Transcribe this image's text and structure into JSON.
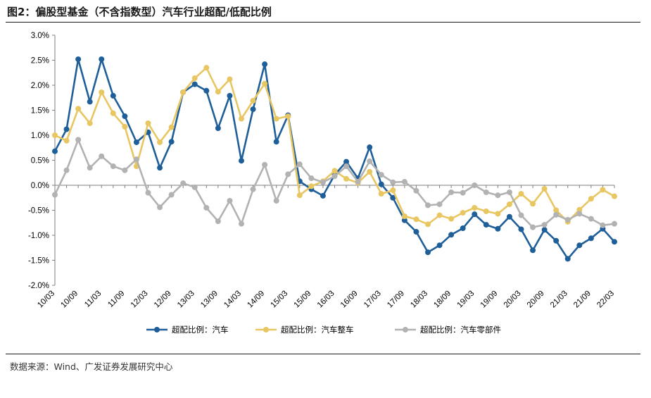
{
  "figure": {
    "title": "图2：偏股型基金（不含指数型）汽车行业超配/低配比例",
    "source": "数据来源：Wind、广发证券发展研究中心"
  },
  "chart_data": {
    "type": "line",
    "y_ticks": [
      "3.0%",
      "2.5%",
      "2.0%",
      "1.5%",
      "1.0%",
      "0.5%",
      "0.0%",
      "-0.5%",
      "-1.0%",
      "-1.5%",
      "-2.0%"
    ],
    "ylim": [
      -2.0,
      3.0
    ],
    "grid": false,
    "legend_position": "bottom",
    "x": [
      "10/03",
      "10/06",
      "10/09",
      "10/12",
      "11/03",
      "11/06",
      "11/09",
      "11/12",
      "12/03",
      "12/06",
      "12/09",
      "12/12",
      "13/03",
      "13/06",
      "13/09",
      "13/12",
      "14/03",
      "14/06",
      "14/09",
      "14/12",
      "15/03",
      "15/06",
      "15/09",
      "15/12",
      "16/03",
      "16/06",
      "16/09",
      "16/12",
      "17/03",
      "17/06",
      "17/09",
      "17/12",
      "18/03",
      "18/06",
      "18/09",
      "18/12",
      "19/03",
      "19/06",
      "19/09",
      "19/12",
      "20/03",
      "20/06",
      "20/09",
      "20/12",
      "21/03",
      "21/06",
      "21/09",
      "21/12",
      "22/03"
    ],
    "x_tick_labels": [
      "10/03",
      "10/09",
      "11/03",
      "11/09",
      "12/03",
      "12/09",
      "13/03",
      "13/09",
      "14/03",
      "14/09",
      "15/03",
      "15/09",
      "16/03",
      "16/09",
      "17/03",
      "17/09",
      "18/03",
      "18/09",
      "19/03",
      "19/09",
      "20/03",
      "20/09",
      "21/03",
      "21/09",
      "22/03"
    ],
    "series": [
      {
        "name": "超配比例：汽车",
        "color": "#1F5F99",
        "values": [
          0.68,
          1.12,
          2.52,
          1.67,
          2.52,
          1.79,
          1.38,
          0.86,
          1.06,
          0.35,
          0.87,
          1.86,
          2.02,
          1.89,
          1.14,
          1.79,
          0.49,
          1.52,
          2.42,
          0.87,
          1.4,
          0.08,
          -0.08,
          -0.21,
          0.21,
          0.47,
          0.14,
          0.76,
          0.02,
          -0.25,
          -0.7,
          -0.93,
          -1.34,
          -1.2,
          -0.99,
          -0.86,
          -0.58,
          -0.79,
          -0.87,
          -0.63,
          -0.88,
          -1.3,
          -0.89,
          -1.11,
          -1.47,
          -1.2,
          -1.06,
          -0.87,
          -1.13
        ]
      },
      {
        "name": "超配比例：汽车整车",
        "color": "#E8C661",
        "values": [
          1.0,
          0.89,
          1.53,
          1.24,
          1.86,
          1.44,
          1.17,
          0.38,
          1.24,
          0.86,
          1.16,
          1.86,
          2.14,
          2.35,
          1.87,
          2.12,
          1.33,
          1.69,
          2.03,
          1.33,
          1.38,
          -0.2,
          -0.02,
          0.08,
          0.29,
          0.13,
          0.05,
          0.27,
          -0.17,
          -0.1,
          -0.62,
          -0.68,
          -0.78,
          -0.6,
          -0.67,
          -0.55,
          -0.45,
          -0.52,
          -0.57,
          -0.38,
          -0.17,
          -0.37,
          -0.07,
          -0.5,
          -0.73,
          -0.49,
          -0.27,
          -0.09,
          -0.22
        ]
      },
      {
        "name": "超配比例：汽车零部件",
        "color": "#B2B2B2",
        "values": [
          -0.19,
          0.3,
          0.91,
          0.35,
          0.58,
          0.38,
          0.3,
          0.52,
          -0.15,
          -0.44,
          -0.19,
          0.04,
          -0.04,
          -0.45,
          -0.72,
          -0.31,
          -0.77,
          -0.08,
          0.41,
          -0.31,
          0.22,
          0.42,
          0.14,
          0.06,
          0.18,
          0.38,
          0.07,
          0.48,
          0.21,
          0.06,
          0.07,
          -0.11,
          -0.4,
          -0.38,
          -0.14,
          -0.15,
          0.0,
          -0.14,
          -0.2,
          -0.14,
          -0.6,
          -0.84,
          -0.79,
          -0.59,
          -0.69,
          -0.57,
          -0.67,
          -0.8,
          -0.77
        ]
      }
    ]
  }
}
